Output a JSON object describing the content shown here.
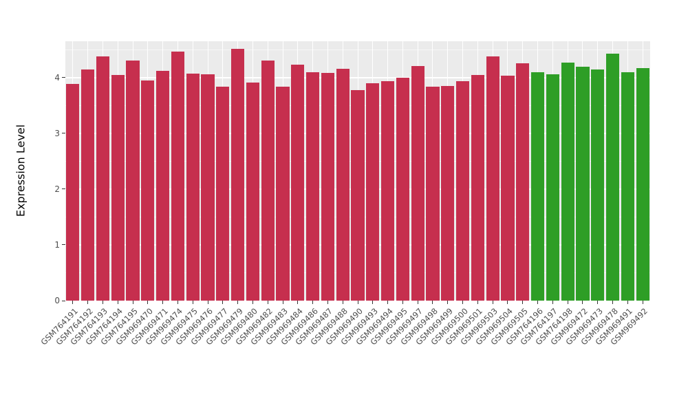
{
  "chart_data": {
    "type": "bar",
    "title": "",
    "xlabel": "",
    "ylabel": "Expression Level",
    "ylim": [
      0,
      4.65
    ],
    "yticks": [
      0,
      1,
      2,
      3,
      4
    ],
    "grid": true,
    "legend": "none",
    "categories": [
      "GSM764191",
      "GSM764192",
      "GSM764193",
      "GSM764194",
      "GSM764195",
      "GSM969470",
      "GSM969471",
      "GSM969474",
      "GSM969475",
      "GSM969476",
      "GSM969477",
      "GSM969479",
      "GSM969480",
      "GSM969482",
      "GSM969483",
      "GSM969484",
      "GSM969486",
      "GSM969487",
      "GSM969488",
      "GSM969490",
      "GSM969493",
      "GSM969494",
      "GSM969495",
      "GSM969497",
      "GSM969498",
      "GSM969499",
      "GSM969500",
      "GSM969501",
      "GSM969503",
      "GSM969504",
      "GSM969505",
      "GSM764196",
      "GSM764197",
      "GSM764198",
      "GSM969472",
      "GSM969473",
      "GSM969478",
      "GSM969491",
      "GSM969492"
    ],
    "values": [
      3.88,
      4.15,
      4.38,
      4.05,
      4.31,
      3.95,
      4.12,
      4.47,
      4.07,
      4.06,
      3.84,
      4.52,
      3.91,
      4.31,
      3.83,
      4.23,
      4.09,
      4.08,
      4.16,
      3.77,
      3.9,
      3.94,
      4.0,
      4.2,
      3.84,
      3.85,
      3.93,
      4.04,
      4.38,
      4.03,
      4.25,
      4.1,
      4.06,
      4.27,
      4.19,
      4.14,
      4.43,
      4.09,
      4.17
    ],
    "bar_groups": [
      "red",
      "red",
      "red",
      "red",
      "red",
      "red",
      "red",
      "red",
      "red",
      "red",
      "red",
      "red",
      "red",
      "red",
      "red",
      "red",
      "red",
      "red",
      "red",
      "red",
      "red",
      "red",
      "red",
      "red",
      "red",
      "red",
      "red",
      "red",
      "red",
      "red",
      "red",
      "green",
      "green",
      "green",
      "green",
      "green",
      "green",
      "green",
      "green"
    ],
    "colors": {
      "red": "#C62F4E",
      "green": "#2E9E26",
      "panel_background": "#EBEBEB",
      "grid_major": "#FFFFFF",
      "grid_minor": "#F7F7F7",
      "tick_text": "#4D4D4D",
      "axis_title_text": "#000000"
    }
  }
}
